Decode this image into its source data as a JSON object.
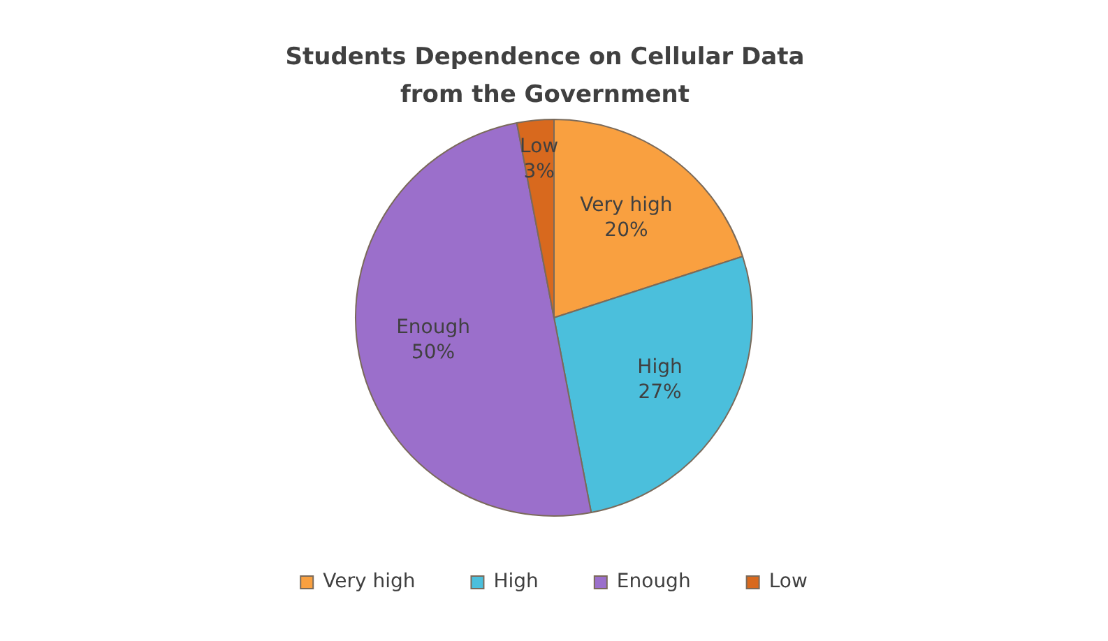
{
  "chart_data": {
    "type": "pie",
    "title": "Students Dependence on Cellular Data from the Government",
    "categories": [
      "Very high",
      "High",
      "Enough",
      "Low"
    ],
    "values": [
      20,
      27,
      50,
      3
    ],
    "colors": [
      "#f9a040",
      "#4bbfdc",
      "#9b6fcb",
      "#d8691e"
    ],
    "value_labels": [
      "20%",
      "27%",
      "50%",
      "3%"
    ],
    "legend": "bottom"
  }
}
